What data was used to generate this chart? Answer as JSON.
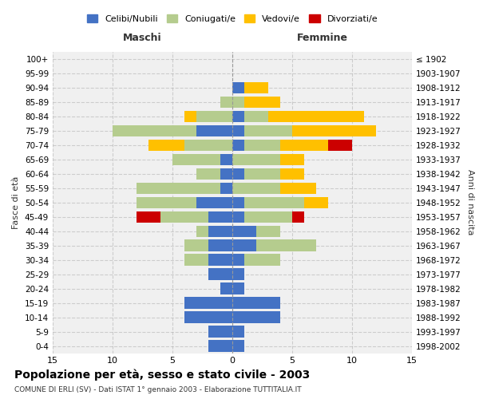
{
  "age_groups": [
    "0-4",
    "5-9",
    "10-14",
    "15-19",
    "20-24",
    "25-29",
    "30-34",
    "35-39",
    "40-44",
    "45-49",
    "50-54",
    "55-59",
    "60-64",
    "65-69",
    "70-74",
    "75-79",
    "80-84",
    "85-89",
    "90-94",
    "95-99",
    "100+"
  ],
  "birth_years": [
    "1998-2002",
    "1993-1997",
    "1988-1992",
    "1983-1987",
    "1978-1982",
    "1973-1977",
    "1968-1972",
    "1963-1967",
    "1958-1962",
    "1953-1957",
    "1948-1952",
    "1943-1947",
    "1938-1942",
    "1933-1937",
    "1928-1932",
    "1923-1927",
    "1918-1922",
    "1913-1917",
    "1908-1912",
    "1903-1907",
    "≤ 1902"
  ],
  "maschi": {
    "celibe": [
      2,
      2,
      4,
      4,
      1,
      2,
      2,
      2,
      2,
      2,
      3,
      1,
      1,
      1,
      0,
      3,
      0,
      0,
      0,
      0,
      0
    ],
    "coniugato": [
      0,
      0,
      0,
      0,
      0,
      0,
      2,
      2,
      1,
      4,
      5,
      7,
      2,
      4,
      4,
      7,
      3,
      1,
      0,
      0,
      0
    ],
    "vedovo": [
      0,
      0,
      0,
      0,
      0,
      0,
      0,
      0,
      0,
      0,
      0,
      0,
      0,
      0,
      3,
      0,
      1,
      0,
      0,
      0,
      0
    ],
    "divorziato": [
      0,
      0,
      0,
      0,
      0,
      0,
      0,
      0,
      0,
      2,
      0,
      0,
      0,
      0,
      0,
      0,
      0,
      0,
      0,
      0,
      0
    ]
  },
  "femmine": {
    "celibe": [
      1,
      1,
      4,
      4,
      1,
      1,
      1,
      2,
      2,
      1,
      1,
      0,
      1,
      0,
      1,
      1,
      1,
      0,
      1,
      0,
      0
    ],
    "coniugato": [
      0,
      0,
      0,
      0,
      0,
      0,
      3,
      5,
      2,
      4,
      5,
      4,
      3,
      4,
      3,
      4,
      2,
      1,
      0,
      0,
      0
    ],
    "vedovo": [
      0,
      0,
      0,
      0,
      0,
      0,
      0,
      0,
      0,
      0,
      2,
      3,
      2,
      2,
      4,
      7,
      8,
      3,
      2,
      0,
      0
    ],
    "divorziato": [
      0,
      0,
      0,
      0,
      0,
      0,
      0,
      0,
      0,
      1,
      0,
      0,
      0,
      0,
      2,
      0,
      0,
      0,
      0,
      0,
      0
    ]
  },
  "colors": {
    "celibe": "#4472c4",
    "coniugato": "#b5cc8e",
    "vedovo": "#ffc000",
    "divorziato": "#cc0000"
  },
  "legend_labels": [
    "Celibi/Nubili",
    "Coniugati/e",
    "Vedovi/e",
    "Divorziati/e"
  ],
  "title": "Popolazione per età, sesso e stato civile - 2003",
  "subtitle": "COMUNE DI ERLI (SV) - Dati ISTAT 1° gennaio 2003 - Elaborazione TUTTITALIA.IT",
  "ylabel_left": "Fasce di età",
  "ylabel_right": "Anni di nascita",
  "xlabel_maschi": "Maschi",
  "xlabel_femmine": "Femmine",
  "xlim": 15,
  "background_color": "#ffffff",
  "plot_bg_color": "#f0f0f0"
}
